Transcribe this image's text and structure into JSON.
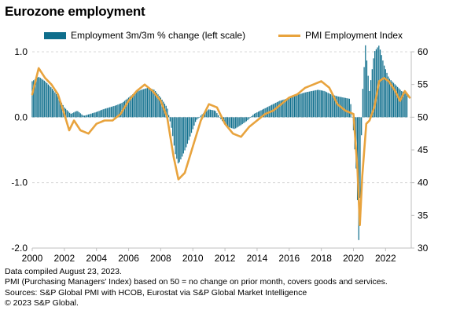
{
  "title": "Eurozone employment",
  "legend": {
    "bars_label": "Employment 3m/3m % change (left scale)",
    "line_label": "PMI Employment Index"
  },
  "footnotes": [
    "Data compiled August 23, 2023.",
    "PMI (Purchasing Managers' Index) based on 50 = no change on prior month, covers goods and services.",
    "Sources: S&P Global PMI with HCOB, Eurostat via S&P Global Market Intelligence",
    "© 2023 S&P Global."
  ],
  "colors": {
    "bars": "#0e6e8c",
    "line": "#e8a33d",
    "grid": "#d9d9d9",
    "axis": "#bfbfbf"
  },
  "chart_data": {
    "type": "bar+line",
    "title": "Eurozone employment",
    "x_ticks": [
      "2000",
      "2002",
      "2004",
      "2006",
      "2008",
      "2010",
      "2012",
      "2014",
      "2016",
      "2018",
      "2020",
      "2022"
    ],
    "x_range": [
      2000,
      2023.6
    ],
    "y_left": {
      "ticks": [
        "-2.0",
        "-1.0",
        "0.0",
        "1.0"
      ],
      "range": [
        -2.0,
        1.0
      ]
    },
    "y_right": {
      "ticks": [
        "30",
        "35",
        "40",
        "45",
        "50",
        "55",
        "60"
      ],
      "range": [
        30,
        60
      ]
    },
    "grid": true,
    "legend_position": "top",
    "series": [
      {
        "name": "Employment 3m/3m % change (left scale)",
        "type": "bar",
        "axis": "left",
        "points": [
          [
            2000.0,
            0.55
          ],
          [
            2000.4,
            0.62
          ],
          [
            2000.8,
            0.55
          ],
          [
            2001.2,
            0.45
          ],
          [
            2001.6,
            0.32
          ],
          [
            2002.0,
            0.15
          ],
          [
            2002.4,
            0.05
          ],
          [
            2002.8,
            0.1
          ],
          [
            2003.2,
            0.02
          ],
          [
            2003.6,
            0.05
          ],
          [
            2004.0,
            0.08
          ],
          [
            2004.4,
            0.12
          ],
          [
            2004.8,
            0.15
          ],
          [
            2005.2,
            0.18
          ],
          [
            2005.6,
            0.22
          ],
          [
            2006.0,
            0.3
          ],
          [
            2006.4,
            0.38
          ],
          [
            2006.8,
            0.42
          ],
          [
            2007.2,
            0.45
          ],
          [
            2007.6,
            0.42
          ],
          [
            2008.0,
            0.3
          ],
          [
            2008.4,
            0.15
          ],
          [
            2008.7,
            -0.2
          ],
          [
            2008.9,
            -0.55
          ],
          [
            2009.1,
            -0.72
          ],
          [
            2009.3,
            -0.62
          ],
          [
            2009.6,
            -0.45
          ],
          [
            2009.9,
            -0.25
          ],
          [
            2010.2,
            -0.05
          ],
          [
            2010.6,
            0.05
          ],
          [
            2011.0,
            0.12
          ],
          [
            2011.4,
            0.1
          ],
          [
            2011.8,
            -0.05
          ],
          [
            2012.2,
            -0.15
          ],
          [
            2012.6,
            -0.18
          ],
          [
            2013.0,
            -0.12
          ],
          [
            2013.4,
            -0.05
          ],
          [
            2013.8,
            0.05
          ],
          [
            2014.2,
            0.1
          ],
          [
            2014.6,
            0.15
          ],
          [
            2015.0,
            0.2
          ],
          [
            2015.4,
            0.25
          ],
          [
            2015.8,
            0.28
          ],
          [
            2016.2,
            0.32
          ],
          [
            2016.6,
            0.35
          ],
          [
            2017.0,
            0.38
          ],
          [
            2017.4,
            0.4
          ],
          [
            2017.8,
            0.42
          ],
          [
            2018.2,
            0.4
          ],
          [
            2018.6,
            0.35
          ],
          [
            2019.0,
            0.32
          ],
          [
            2019.4,
            0.3
          ],
          [
            2019.8,
            0.28
          ],
          [
            2020.0,
            -0.2
          ],
          [
            2020.2,
            -0.9
          ],
          [
            2020.35,
            -2.0
          ],
          [
            2020.55,
            0.3
          ],
          [
            2020.75,
            1.1
          ],
          [
            2021.0,
            0.4
          ],
          [
            2021.3,
            1.0
          ],
          [
            2021.6,
            1.1
          ],
          [
            2021.9,
            0.8
          ],
          [
            2022.2,
            0.6
          ],
          [
            2022.6,
            0.5
          ],
          [
            2023.0,
            0.4
          ],
          [
            2023.4,
            0.35
          ]
        ]
      },
      {
        "name": "PMI Employment Index",
        "type": "line",
        "axis": "right",
        "points": [
          [
            2000.0,
            53.5
          ],
          [
            2000.4,
            57.5
          ],
          [
            2000.8,
            56.0
          ],
          [
            2001.2,
            55.0
          ],
          [
            2001.6,
            53.5
          ],
          [
            2002.0,
            50.5
          ],
          [
            2002.3,
            48.0
          ],
          [
            2002.6,
            49.5
          ],
          [
            2003.0,
            48.0
          ],
          [
            2003.5,
            47.5
          ],
          [
            2004.0,
            49.0
          ],
          [
            2004.5,
            49.5
          ],
          [
            2005.0,
            49.5
          ],
          [
            2005.5,
            50.5
          ],
          [
            2006.0,
            52.5
          ],
          [
            2006.5,
            54.0
          ],
          [
            2007.0,
            55.0
          ],
          [
            2007.5,
            54.0
          ],
          [
            2008.0,
            52.5
          ],
          [
            2008.4,
            50.0
          ],
          [
            2008.8,
            44.0
          ],
          [
            2009.1,
            40.5
          ],
          [
            2009.5,
            41.5
          ],
          [
            2010.0,
            45.5
          ],
          [
            2010.5,
            49.5
          ],
          [
            2011.0,
            52.0
          ],
          [
            2011.5,
            51.5
          ],
          [
            2012.0,
            49.0
          ],
          [
            2012.5,
            47.5
          ],
          [
            2013.0,
            47.0
          ],
          [
            2013.5,
            48.5
          ],
          [
            2014.0,
            49.5
          ],
          [
            2014.5,
            50.5
          ],
          [
            2015.0,
            51.0
          ],
          [
            2015.5,
            52.0
          ],
          [
            2016.0,
            53.0
          ],
          [
            2016.5,
            53.5
          ],
          [
            2017.0,
            54.5
          ],
          [
            2017.5,
            55.0
          ],
          [
            2018.0,
            55.5
          ],
          [
            2018.5,
            54.5
          ],
          [
            2019.0,
            52.0
          ],
          [
            2019.5,
            51.0
          ],
          [
            2020.0,
            50.5
          ],
          [
            2020.25,
            42.0
          ],
          [
            2020.4,
            33.5
          ],
          [
            2020.55,
            41.0
          ],
          [
            2020.8,
            49.0
          ],
          [
            2021.0,
            49.5
          ],
          [
            2021.3,
            51.5
          ],
          [
            2021.6,
            55.5
          ],
          [
            2021.9,
            56.0
          ],
          [
            2022.2,
            55.5
          ],
          [
            2022.6,
            54.0
          ],
          [
            2022.9,
            52.5
          ],
          [
            2023.2,
            54.0
          ],
          [
            2023.5,
            53.0
          ]
        ]
      }
    ]
  }
}
